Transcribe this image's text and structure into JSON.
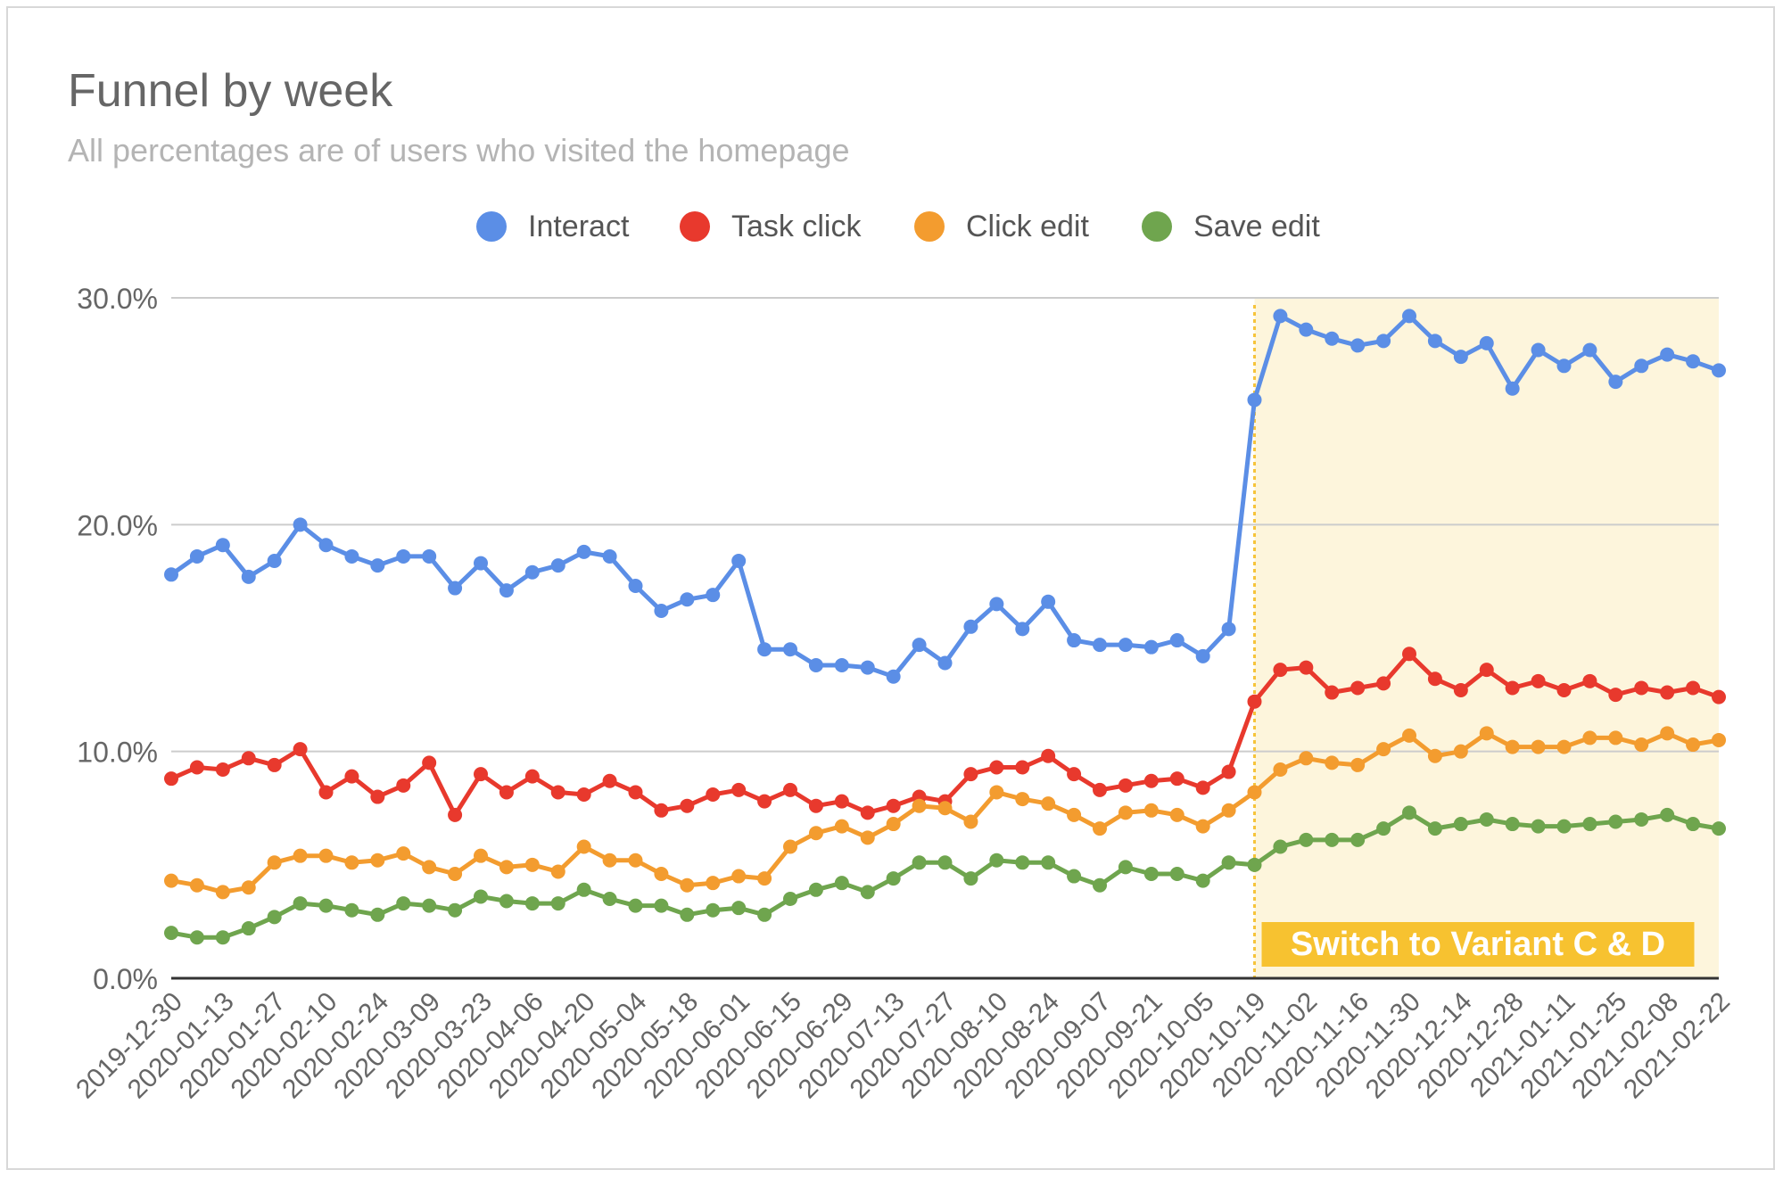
{
  "chart_data": {
    "type": "line",
    "title": "Funnel by week",
    "subtitle": "All percentages are of users who visited the homepage",
    "xlabel": "",
    "ylabel": "",
    "ylim": [
      0,
      30
    ],
    "yticks": [
      "0.0%",
      "10.0%",
      "20.0%",
      "30.0%"
    ],
    "grid": true,
    "legend_position": "top-center",
    "x_tick_labels": [
      "2019-12-30",
      "2020-01-13",
      "2020-01-27",
      "2020-02-10",
      "2020-02-24",
      "2020-03-09",
      "2020-03-23",
      "2020-04-06",
      "2020-04-20",
      "2020-05-04",
      "2020-05-18",
      "2020-06-01",
      "2020-06-15",
      "2020-06-29",
      "2020-07-13",
      "2020-07-27",
      "2020-08-10",
      "2020-08-24",
      "2020-09-07",
      "2020-09-21",
      "2020-10-05",
      "2020-10-19",
      "2020-11-02",
      "2020-11-16",
      "2020-11-30",
      "2020-12-14",
      "2020-12-28",
      "2021-01-11",
      "2021-01-25",
      "2021-02-08",
      "2021-02-22"
    ],
    "x": [
      "2019-12-30",
      "2020-01-06",
      "2020-01-13",
      "2020-01-20",
      "2020-01-27",
      "2020-02-03",
      "2020-02-10",
      "2020-02-17",
      "2020-02-24",
      "2020-03-02",
      "2020-03-09",
      "2020-03-16",
      "2020-03-23",
      "2020-03-30",
      "2020-04-06",
      "2020-04-13",
      "2020-04-20",
      "2020-04-27",
      "2020-05-04",
      "2020-05-11",
      "2020-05-18",
      "2020-05-25",
      "2020-06-01",
      "2020-06-08",
      "2020-06-15",
      "2020-06-22",
      "2020-06-29",
      "2020-07-06",
      "2020-07-13",
      "2020-07-20",
      "2020-07-27",
      "2020-08-03",
      "2020-08-10",
      "2020-08-17",
      "2020-08-24",
      "2020-08-31",
      "2020-09-07",
      "2020-09-14",
      "2020-09-21",
      "2020-09-28",
      "2020-10-05",
      "2020-10-12",
      "2020-10-19",
      "2020-10-26",
      "2020-11-02",
      "2020-11-09",
      "2020-11-16",
      "2020-11-23",
      "2020-11-30",
      "2020-12-07",
      "2020-12-14",
      "2020-12-21",
      "2020-12-28",
      "2021-01-04",
      "2021-01-11",
      "2021-01-18",
      "2021-01-25",
      "2021-02-01",
      "2021-02-08",
      "2021-02-15",
      "2021-02-22"
    ],
    "series": [
      {
        "name": "Interact",
        "color": "#5b8ee6",
        "values": [
          17.8,
          18.6,
          19.1,
          17.7,
          18.4,
          20.0,
          19.1,
          18.6,
          18.2,
          18.6,
          18.6,
          17.2,
          18.3,
          17.1,
          17.9,
          18.2,
          18.8,
          18.6,
          17.3,
          16.2,
          16.7,
          16.9,
          18.4,
          14.5,
          14.5,
          13.8,
          13.8,
          13.7,
          13.3,
          14.7,
          13.9,
          15.5,
          16.5,
          15.4,
          16.6,
          14.9,
          14.7,
          14.7,
          14.6,
          14.9,
          14.2,
          15.4,
          25.5,
          29.2,
          28.6,
          28.2,
          27.9,
          28.1,
          29.2,
          28.1,
          27.4,
          28.0,
          26.0,
          27.7,
          27.0,
          27.7,
          26.3,
          27.0,
          27.5,
          27.2,
          26.8
        ]
      },
      {
        "name": "Task click",
        "color": "#e8392d",
        "values": [
          8.8,
          9.3,
          9.2,
          9.7,
          9.4,
          10.1,
          8.2,
          8.9,
          8.0,
          8.5,
          9.5,
          7.2,
          9.0,
          8.2,
          8.9,
          8.2,
          8.1,
          8.7,
          8.2,
          7.4,
          7.6,
          8.1,
          8.3,
          7.8,
          8.3,
          7.6,
          7.8,
          7.3,
          7.6,
          8.0,
          7.8,
          9.0,
          9.3,
          9.3,
          9.8,
          9.0,
          8.3,
          8.5,
          8.7,
          8.8,
          8.4,
          9.1,
          12.2,
          13.6,
          13.7,
          12.6,
          12.8,
          13.0,
          14.3,
          13.2,
          12.7,
          13.6,
          12.8,
          13.1,
          12.7,
          13.1,
          12.5,
          12.8,
          12.6,
          12.8,
          12.4
        ]
      },
      {
        "name": "Click edit",
        "color": "#f39c2f",
        "values": [
          4.3,
          4.1,
          3.8,
          4.0,
          5.1,
          5.4,
          5.4,
          5.1,
          5.2,
          5.5,
          4.9,
          4.6,
          5.4,
          4.9,
          5.0,
          4.7,
          5.8,
          5.2,
          5.2,
          4.6,
          4.1,
          4.2,
          4.5,
          4.4,
          5.8,
          6.4,
          6.7,
          6.2,
          6.8,
          7.6,
          7.5,
          6.9,
          8.2,
          7.9,
          7.7,
          7.2,
          6.6,
          7.3,
          7.4,
          7.2,
          6.7,
          7.4,
          8.2,
          9.2,
          9.7,
          9.5,
          9.4,
          10.1,
          10.7,
          9.8,
          10.0,
          10.8,
          10.2,
          10.2,
          10.2,
          10.6,
          10.6,
          10.3,
          10.8,
          10.3,
          10.5
        ]
      },
      {
        "name": "Save edit",
        "color": "#6fa54e",
        "values": [
          2.0,
          1.8,
          1.8,
          2.2,
          2.7,
          3.3,
          3.2,
          3.0,
          2.8,
          3.3,
          3.2,
          3.0,
          3.6,
          3.4,
          3.3,
          3.3,
          3.9,
          3.5,
          3.2,
          3.2,
          2.8,
          3.0,
          3.1,
          2.8,
          3.5,
          3.9,
          4.2,
          3.8,
          4.4,
          5.1,
          5.1,
          4.4,
          5.2,
          5.1,
          5.1,
          4.5,
          4.1,
          4.9,
          4.6,
          4.6,
          4.3,
          5.1,
          5.0,
          5.8,
          6.1,
          6.1,
          6.1,
          6.6,
          7.3,
          6.6,
          6.8,
          7.0,
          6.8,
          6.7,
          6.7,
          6.8,
          6.9,
          7.0,
          7.2,
          6.8,
          6.6
        ]
      }
    ],
    "annotation": {
      "label": "Switch to Variant C & D",
      "x_start": "2020-10-19",
      "x_end": "2021-02-22",
      "band_color": "#fdf5dc",
      "marker_color": "#f6c43b",
      "label_bg": "#f7c230",
      "label_color": "#ffffff"
    },
    "colors": {
      "title": "#666666",
      "subtitle": "#b4b4b4",
      "axis_text": "#666666",
      "grid": "#cccccc",
      "baseline": "#333333"
    }
  }
}
